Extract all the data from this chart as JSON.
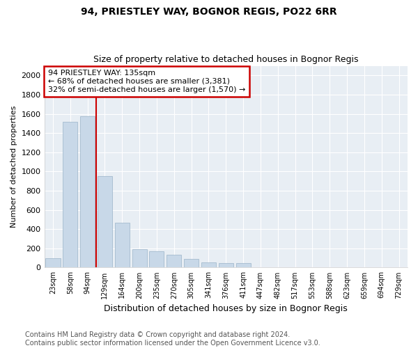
{
  "title": "94, PRIESTLEY WAY, BOGNOR REGIS, PO22 6RR",
  "subtitle": "Size of property relative to detached houses in Bognor Regis",
  "xlabel": "Distribution of detached houses by size in Bognor Regis",
  "ylabel": "Number of detached properties",
  "categories": [
    "23sqm",
    "58sqm",
    "94sqm",
    "129sqm",
    "164sqm",
    "200sqm",
    "235sqm",
    "270sqm",
    "305sqm",
    "341sqm",
    "376sqm",
    "411sqm",
    "447sqm",
    "482sqm",
    "517sqm",
    "553sqm",
    "588sqm",
    "623sqm",
    "659sqm",
    "694sqm",
    "729sqm"
  ],
  "values": [
    100,
    1520,
    1575,
    950,
    470,
    195,
    170,
    130,
    90,
    55,
    50,
    45,
    0,
    0,
    0,
    0,
    0,
    0,
    0,
    0,
    0
  ],
  "bar_color": "#c8d8e8",
  "bar_edge_color": "#9ab4c8",
  "vline_x": 2.5,
  "vline_color": "#cc0000",
  "annotation_text": "94 PRIESTLEY WAY: 135sqm\n← 68% of detached houses are smaller (3,381)\n32% of semi-detached houses are larger (1,570) →",
  "annotation_box_color": "#cc0000",
  "ylim": [
    0,
    2100
  ],
  "yticks": [
    0,
    200,
    400,
    600,
    800,
    1000,
    1200,
    1400,
    1600,
    1800,
    2000
  ],
  "footnote": "Contains HM Land Registry data © Crown copyright and database right 2024.\nContains public sector information licensed under the Open Government Licence v3.0.",
  "bg_color": "#ffffff",
  "plot_bg_color": "#e8eef4",
  "grid_color": "#ffffff",
  "title_fontsize": 10,
  "subtitle_fontsize": 9,
  "footnote_fontsize": 7,
  "bar_width": 0.85,
  "annotation_fontsize": 8
}
